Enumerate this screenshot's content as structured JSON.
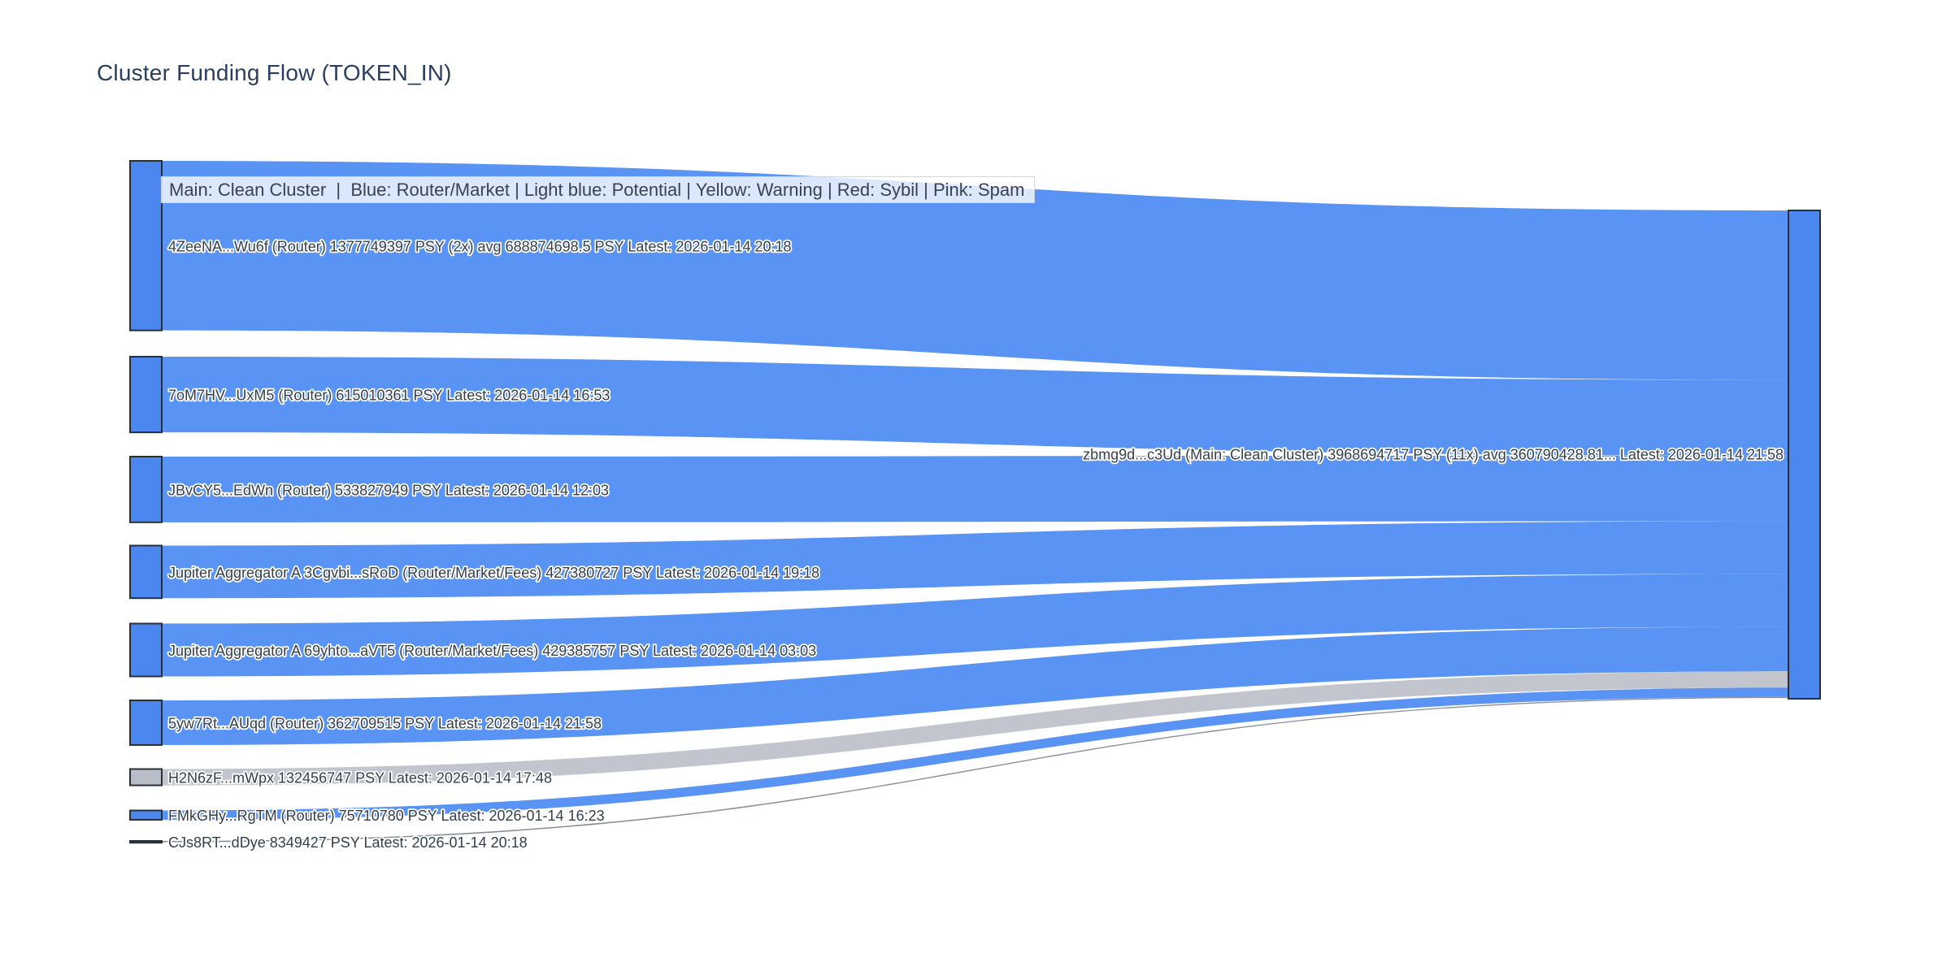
{
  "page": {
    "title": "Cluster Funding Flow (TOKEN_IN)"
  },
  "chart_data": {
    "type": "sankey",
    "title": "Cluster Funding Flow (TOKEN_IN)",
    "legend_note": "Main: Clean Cluster  |  Blue: Router/Market | Light blue: Potential | Yellow: Warning | Red: Sybil | Pink: Spam",
    "unit": "PSY",
    "layout_hint": "left sources flow into single right target; labels right of left nodes, label left of target node",
    "colors": {
      "blue_node": "#4b87ee",
      "gray_node": "#b9bdc6",
      "dark_node": "#3a424e",
      "blue_link": "rgba(75,138,242,0.92)",
      "gray_link": "rgba(187,191,200,0.90)",
      "dark_link": "rgba(130,136,148,0.95)",
      "node_border": "#26303b",
      "label_text": "#333e4b",
      "title_text": "#2a3f5f"
    },
    "sources": [
      {
        "label": "4ZeeNA...Wu6f (Router) 1377749397 PSY (2x) avg 688874698.5 PSY Latest: 2026-01-14 20:18",
        "value": 1377749397,
        "color": "blue"
      },
      {
        "label": "7oM7HV...UxM5 (Router) 615010361 PSY Latest: 2026-01-14 16:53",
        "value": 615010361,
        "color": "blue"
      },
      {
        "label": "JBvCY5...EdWn (Router) 533827949 PSY Latest: 2026-01-14 12:03",
        "value": 533827949,
        "color": "blue"
      },
      {
        "label": "Jupiter Aggregator A 3Cgvbi...sRoD (Router/Market/Fees) 427380727 PSY Latest: 2026-01-14 19:18",
        "value": 427380727,
        "color": "blue"
      },
      {
        "label": "Jupiter Aggregator A 69yhto...aVT5 (Router/Market/Fees) 429385757 PSY Latest: 2026-01-14 03:03",
        "value": 429385757,
        "color": "blue"
      },
      {
        "label": "5yw7Rt...AUqd (Router) 362709515 PSY Latest: 2026-01-14 21:58",
        "value": 362709515,
        "color": "blue"
      },
      {
        "label": "H2N6zF...mWpx 132456747 PSY Latest: 2026-01-14 17:48",
        "value": 132456747,
        "color": "gray"
      },
      {
        "label": "FMkGHy...RgTM (Router) 75710780 PSY Latest: 2026-01-14 16:23",
        "value": 75710780,
        "color": "blue"
      },
      {
        "label": "CJs8RT...dDye 8349427 PSY Latest: 2026-01-14 20:18",
        "value": 8349427,
        "color": "dark"
      }
    ],
    "target": {
      "label": "zbmg9d...c3Ud (Main: Clean Cluster) 3968694717 PSY (11x) avg 360790428.81... Latest: 2026-01-14 21:58",
      "value": 3968694717,
      "color": "blue"
    }
  }
}
